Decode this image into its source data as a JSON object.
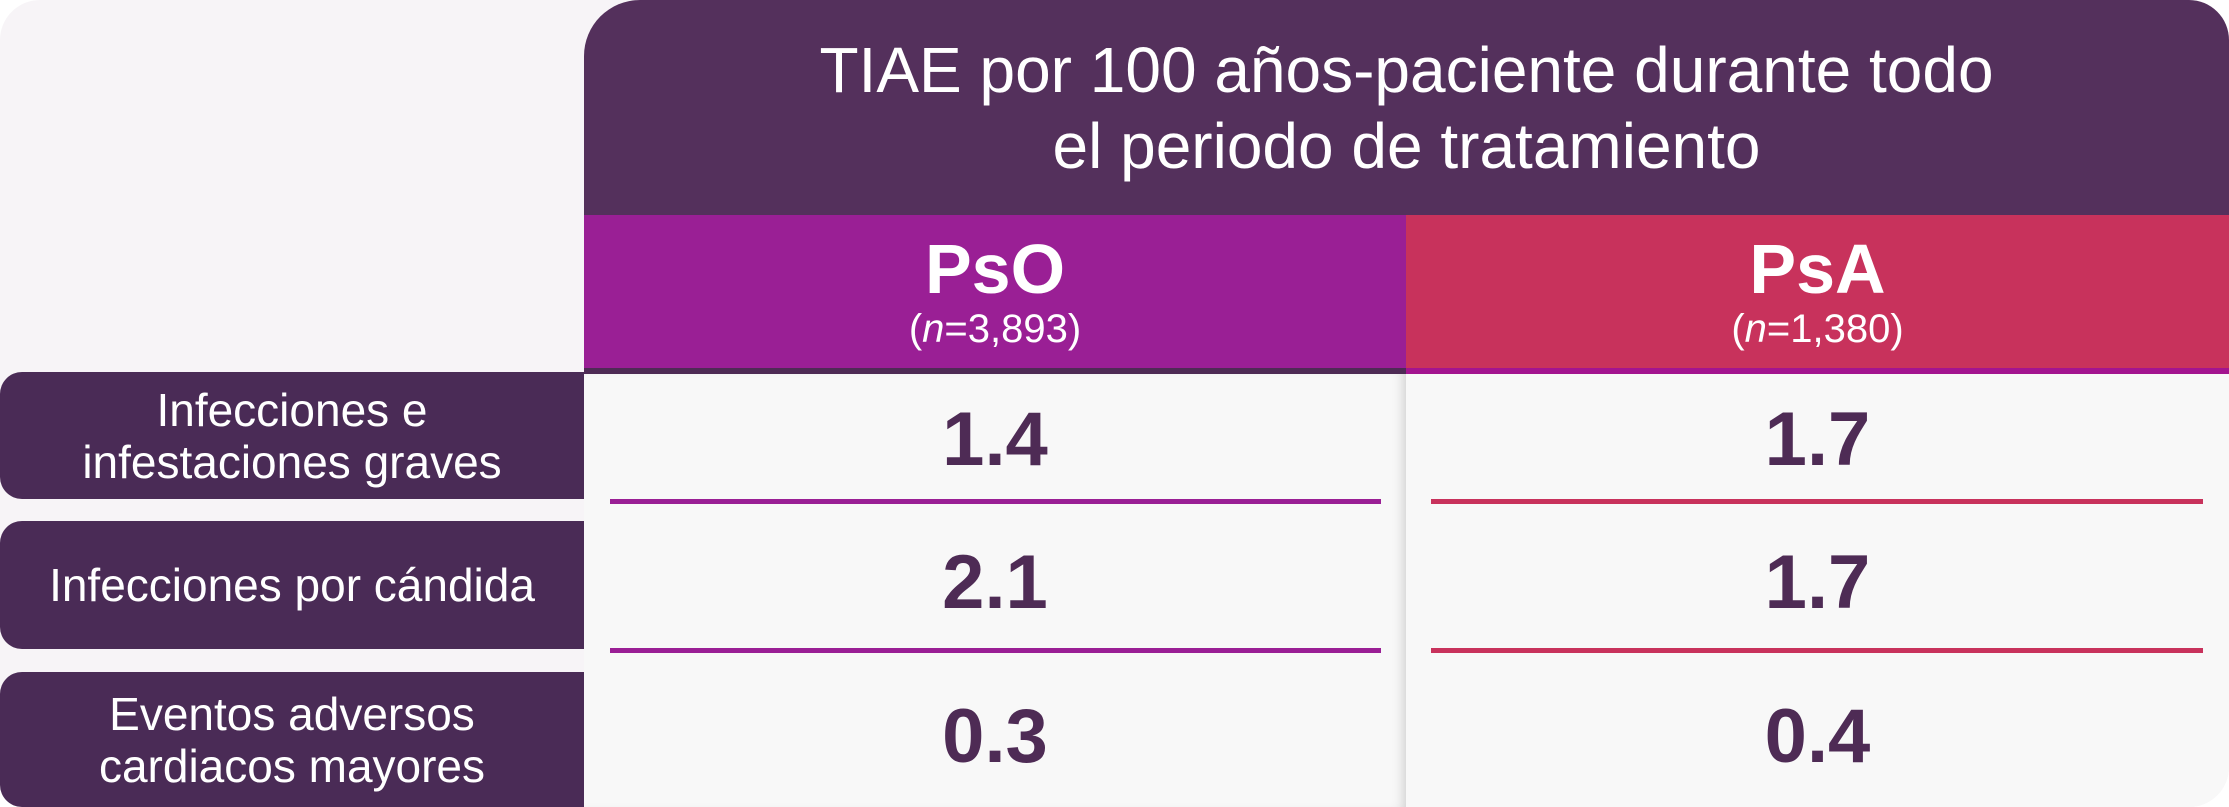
{
  "header": {
    "title_line1": "TIAE por 100 años-paciente durante todo",
    "title_line2": "el periodo de tratamiento"
  },
  "columns": [
    {
      "name": "PsO",
      "n_label": "n",
      "n_value": "=3,893",
      "color": "#9a1f95"
    },
    {
      "name": "PsA",
      "n_label": "n",
      "n_value": "=1,380",
      "color": "#c8325c"
    }
  ],
  "rows": [
    {
      "label_line1": "Infecciones e",
      "label_line2": "infestaciones graves",
      "pso": "1.4",
      "psa": "1.7"
    },
    {
      "label_line1": "Infecciones por cándida",
      "label_line2": "",
      "pso": "2.1",
      "psa": "1.7"
    },
    {
      "label_line1": "Eventos adversos",
      "label_line2": "cardiacos mayores",
      "pso": "0.3",
      "psa": "0.4"
    }
  ],
  "colors": {
    "header_bg": "#54305c",
    "row_label_bg": "#4a2b56",
    "value_text": "#4e2b55"
  }
}
